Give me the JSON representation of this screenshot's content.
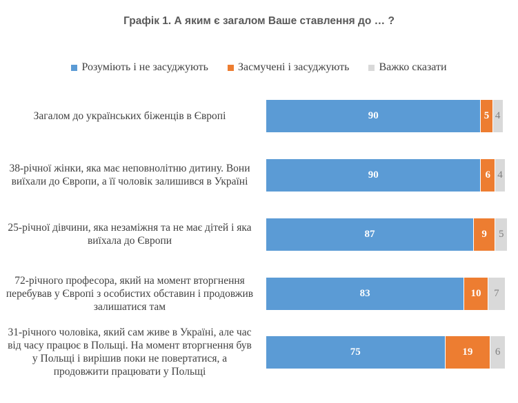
{
  "chart_data": {
    "type": "bar",
    "orientation": "horizontal",
    "stacked": true,
    "title": "Графік 1. А яким є загалом Ваше ставлення до … ?",
    "legend_position": "top",
    "xlim": [
      0,
      100
    ],
    "categories": [
      "Загалом до українських біженців в Європі",
      "38-річної жінки, яка має неповнолітню дитину. Вони виїхали до Європи, а її чоловік залишився в Україні",
      "25-річної дівчини, яка незаміжня та не має дітей і яка виїхала до Європи",
      "72-річного професора, який на момент вторгнення перебував у Європі з особистих обставин і продовжив залишатися там",
      "31-річного чоловіка, який сам живе в Україні, але час від часу працює в Польщі. На момент вторгнення був у Польщі і вирішив поки не повертатися, а продовжити працювати у Польщі"
    ],
    "series": [
      {
        "name": "Розуміють і не засуджують",
        "color": "#5b9bd5",
        "values": [
          90,
          90,
          87,
          83,
          75
        ]
      },
      {
        "name": "Засмучені і засуджують",
        "color": "#ed7d31",
        "values": [
          5,
          6,
          9,
          10,
          19
        ]
      },
      {
        "name": "Важко сказати",
        "color": "#d9d9d9",
        "values": [
          4,
          4,
          5,
          7,
          6
        ]
      }
    ]
  }
}
